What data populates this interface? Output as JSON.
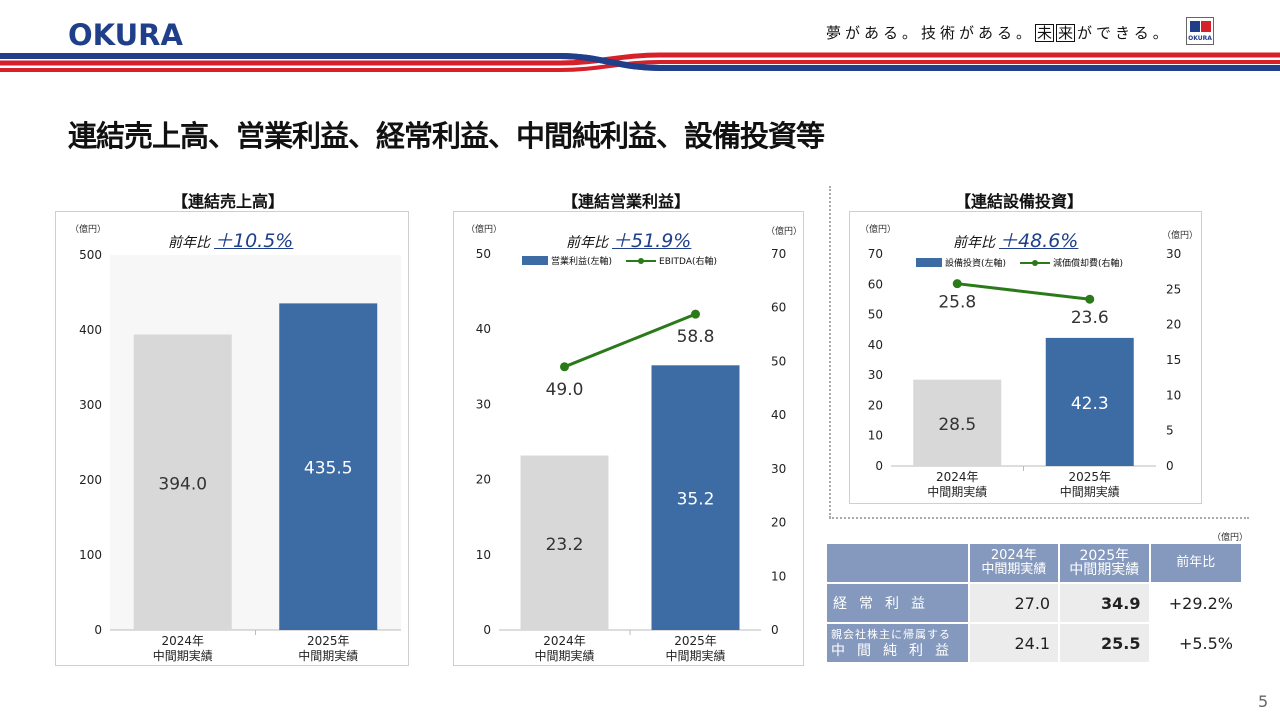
{
  "header": {
    "logo": "OKURA",
    "slogan_a": "夢がある。技術がある。",
    "slogan_box1": "未",
    "slogan_box2": "来",
    "slogan_b": "ができる。",
    "mini_logo_text": "OKURA",
    "stripe_colors": {
      "blue": "#1f3f8a",
      "red": "#d6202a"
    }
  },
  "page_title": "連結売上高、営業利益、経常利益、中間純利益、設備投資等",
  "page_number": "5",
  "colors": {
    "bar_prev": "#d8d8d8",
    "bar_curr": "#3d6ca5",
    "line": "#2a7a1a",
    "table_head": "#8499bd"
  },
  "charts": [
    {
      "panel_title": "【連結売上高】",
      "unit": "（億円）",
      "yoy_label": "前年比",
      "yoy_value": "＋10.5%",
      "chart_data": {
        "type": "bar",
        "categories": [
          "2024年\n中間期実績",
          "2025年\n中間期実績"
        ],
        "values": [
          394.0,
          435.5
        ],
        "ylim": [
          0,
          500
        ],
        "yticks": [
          0,
          100,
          200,
          300,
          400,
          500
        ],
        "value_labels": [
          "394.0",
          "435.5"
        ]
      }
    },
    {
      "panel_title": "【連結営業利益】",
      "unit_left": "（億円）",
      "unit_right": "（億円）",
      "yoy_label": "前年比",
      "yoy_value": "＋51.9%",
      "legend_bar": "営業利益(左軸)",
      "legend_line": "EBITDA(右軸)",
      "chart_data": {
        "type": "bar",
        "categories": [
          "2024年\n中間期実績",
          "2025年\n中間期実績"
        ],
        "series": [
          {
            "name": "営業利益(左軸)",
            "type": "bar",
            "axis": "left",
            "values": [
              23.2,
              35.2
            ],
            "labels": [
              "23.2",
              "35.2"
            ]
          },
          {
            "name": "EBITDA(右軸)",
            "type": "line",
            "axis": "right",
            "values": [
              49.0,
              58.8
            ],
            "labels": [
              "49.0",
              "58.8"
            ]
          }
        ],
        "ylim": [
          0,
          50
        ],
        "yticks": [
          0,
          10,
          20,
          30,
          40,
          50
        ],
        "y2lim": [
          0,
          70
        ],
        "y2ticks": [
          0,
          10,
          20,
          30,
          40,
          50,
          60,
          70
        ]
      }
    },
    {
      "panel_title": "【連結設備投資】",
      "unit_left": "（億円）",
      "unit_right": "（億円）",
      "yoy_label": "前年比",
      "yoy_value": "＋48.6%",
      "legend_bar": "設備投資(左軸)",
      "legend_line": "減価償却費(右軸)",
      "chart_data": {
        "type": "bar",
        "categories": [
          "2024年\n中間期実績",
          "2025年\n中間期実績"
        ],
        "series": [
          {
            "name": "設備投資(左軸)",
            "type": "bar",
            "axis": "left",
            "values": [
              28.5,
              42.3
            ],
            "labels": [
              "28.5",
              "42.3"
            ]
          },
          {
            "name": "減価償却費(右軸)",
            "type": "line",
            "axis": "right",
            "values": [
              25.8,
              23.6
            ],
            "labels": [
              "25.8",
              "23.6"
            ]
          }
        ],
        "ylim": [
          0,
          70
        ],
        "yticks": [
          0,
          10,
          20,
          30,
          40,
          50,
          60,
          70
        ],
        "y2lim": [
          0,
          30
        ],
        "y2ticks": [
          0,
          5,
          10,
          15,
          20,
          25,
          30
        ]
      }
    }
  ],
  "table": {
    "unit": "（億円）",
    "headers": [
      "2024年\n中間期実績",
      "2025年\n中間期実績",
      "前年比"
    ],
    "rows": [
      {
        "label": "経常利益",
        "values": [
          "27.0",
          "34.9",
          "+29.2%"
        ]
      },
      {
        "label_small": "親会社株主に帰属する",
        "label": "中間純利益",
        "values": [
          "24.1",
          "25.5",
          "+5.5%"
        ]
      }
    ]
  }
}
